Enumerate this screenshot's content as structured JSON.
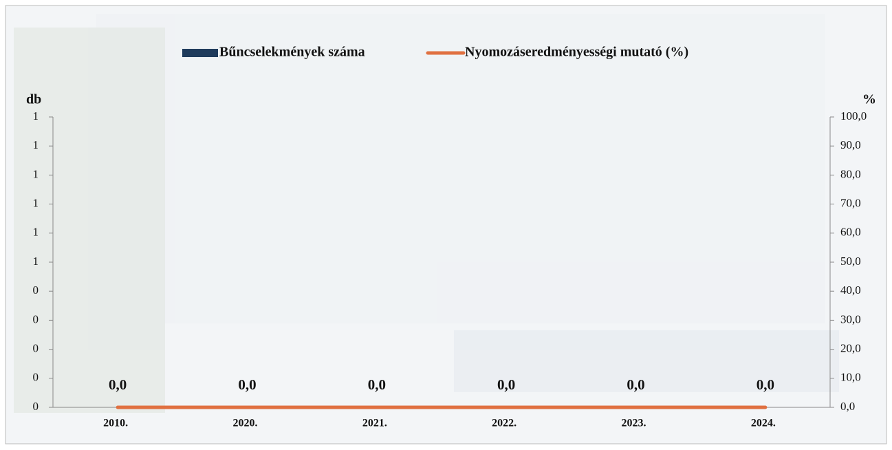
{
  "chart_data": {
    "type": "bar",
    "categories": [
      "2010.",
      "2020.",
      "2021.",
      "2022.",
      "2023.",
      "2024."
    ],
    "series": [
      {
        "name": "Bűncselekmények száma",
        "type": "bar",
        "color": "#1f3b5c",
        "values": [
          0,
          0,
          0,
          0,
          0,
          0
        ]
      },
      {
        "name": "Nyomozáseredményességi mutató (%)",
        "type": "line",
        "axis": "y2",
        "color": "#e07040",
        "values": [
          0,
          0,
          0,
          0,
          0,
          0
        ],
        "value_labels": [
          "0,0",
          "0,0",
          "0,0",
          "0,0",
          "0,0",
          "0,0"
        ]
      }
    ],
    "ylabel": "db",
    "y2label": "%",
    "ylim": [
      0,
      1
    ],
    "yticks": [
      0,
      {
        "value": 0.1,
        "label": "0"
      },
      {
        "value": 0.2,
        "label": "0"
      },
      {
        "value": 0.3,
        "label": "0"
      },
      {
        "value": 0.4,
        "label": "0"
      },
      {
        "value": 0.5,
        "label": "1"
      },
      {
        "value": 0.6,
        "label": "1"
      },
      {
        "value": 0.7,
        "label": "1"
      },
      {
        "value": 0.8,
        "label": "1"
      },
      {
        "value": 0.9,
        "label": "1"
      },
      1
    ],
    "y2lim": [
      0,
      100
    ],
    "y2ticks": [
      {
        "value": 0,
        "label": "0,0"
      },
      {
        "value": 10,
        "label": "10,0"
      },
      {
        "value": 20,
        "label": "20,0"
      },
      {
        "value": 30,
        "label": "30,0"
      },
      {
        "value": 40,
        "label": "40,0"
      },
      {
        "value": 50,
        "label": "50,0"
      },
      {
        "value": 60,
        "label": "60,0"
      },
      {
        "value": 70,
        "label": "70,0"
      },
      {
        "value": 80,
        "label": "80,0"
      },
      {
        "value": 90,
        "label": "90,0"
      },
      {
        "value": 100,
        "label": "100,0"
      }
    ],
    "legend": "top"
  }
}
